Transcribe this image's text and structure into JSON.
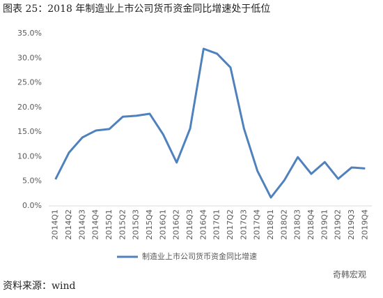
{
  "chart_data": {
    "type": "line",
    "title": "图表 25：2018 年制造业上市公司货币资金同比增速处于低位",
    "categories": [
      "2014Q1",
      "2014Q2",
      "2014Q3",
      "2014Q4",
      "2015Q1",
      "2015Q2",
      "2015Q3",
      "2015Q4",
      "2016Q1",
      "2016Q2",
      "2016Q3",
      "2016Q4",
      "2017Q1",
      "2017Q2",
      "2017Q3",
      "2017Q4",
      "2018Q1",
      "2018Q2",
      "2018Q3",
      "2018Q4",
      "2019Q1",
      "2019Q2",
      "2019Q3",
      "2019Q4"
    ],
    "series": [
      {
        "name": "制造业上市公司货币资金同比增速",
        "color": "#4f81bd",
        "values": [
          5.4,
          10.8,
          13.9,
          15.3,
          15.6,
          18.1,
          18.3,
          18.7,
          14.5,
          8.8,
          15.7,
          31.9,
          30.9,
          28.1,
          15.7,
          7.1,
          1.7,
          5.2,
          9.9,
          6.5,
          8.9,
          5.5,
          7.8,
          7.6
        ]
      }
    ],
    "ylim": [
      0,
      35
    ],
    "yticks": [
      {
        "value": 0,
        "label": "0.0%"
      },
      {
        "value": 5,
        "label": "5.0%"
      },
      {
        "value": 10,
        "label": "10.0%"
      },
      {
        "value": 15,
        "label": "15.0%"
      },
      {
        "value": 20,
        "label": "20.0%"
      },
      {
        "value": 25,
        "label": "25.0%"
      },
      {
        "value": 30,
        "label": "30.0%"
      },
      {
        "value": 35,
        "label": "35.0%"
      }
    ],
    "legend": "bottom",
    "source": "资料来源：wind",
    "watermark": "奇韩宏观"
  }
}
